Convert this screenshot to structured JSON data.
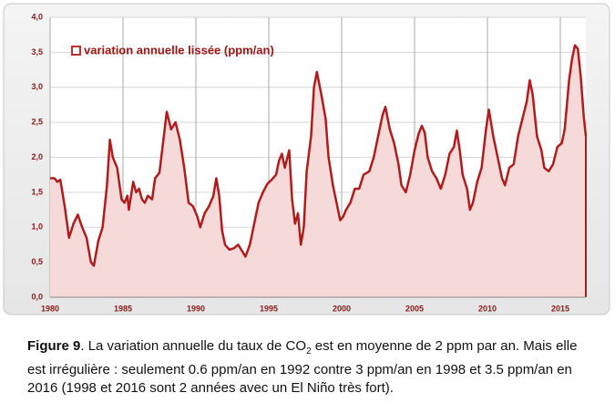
{
  "chart_data": {
    "type": "area",
    "legend": "variation annuelle lissée (ppm/an)",
    "color": "#b01c1c",
    "fill": "#f6dada",
    "xlim": [
      1980,
      2016.75
    ],
    "xticks": [
      1980,
      1985,
      1990,
      1995,
      2000,
      2005,
      2010,
      2015
    ],
    "ylim": [
      0,
      4
    ],
    "yticks": [
      {
        "value": 0,
        "label": "0,0"
      },
      {
        "value": 0.5,
        "label": "0,5"
      },
      {
        "value": 1,
        "label": "1,0"
      },
      {
        "value": 1.5,
        "label": "1,5"
      },
      {
        "value": 2,
        "label": "2,0"
      },
      {
        "value": 2.5,
        "label": "2,5"
      },
      {
        "value": 3,
        "label": "3,0"
      },
      {
        "value": 3.5,
        "label": "3,5"
      },
      {
        "value": 4,
        "label": "4,0"
      }
    ],
    "grid": true,
    "x": [
      1980.0,
      1980.3,
      1980.5,
      1980.7,
      1981.0,
      1981.3,
      1981.6,
      1981.9,
      1982.2,
      1982.5,
      1982.8,
      1983.0,
      1983.3,
      1983.6,
      1983.9,
      1984.1,
      1984.3,
      1984.6,
      1984.9,
      1985.1,
      1985.3,
      1985.4,
      1985.7,
      1985.9,
      1986.1,
      1986.3,
      1986.5,
      1986.7,
      1987.0,
      1987.2,
      1987.5,
      1987.8,
      1988.0,
      1988.3,
      1988.6,
      1988.9,
      1989.2,
      1989.5,
      1989.8,
      1990.1,
      1990.3,
      1990.6,
      1990.9,
      1991.2,
      1991.4,
      1991.6,
      1991.8,
      1992.0,
      1992.3,
      1992.6,
      1992.9,
      1993.2,
      1993.4,
      1993.7,
      1994.0,
      1994.3,
      1994.6,
      1994.9,
      1995.2,
      1995.5,
      1995.7,
      1995.9,
      1996.1,
      1996.4,
      1996.6,
      1996.8,
      1997.0,
      1997.2,
      1997.4,
      1997.6,
      1997.9,
      1998.1,
      1998.3,
      1998.6,
      1998.9,
      1999.1,
      1999.4,
      1999.7,
      1999.9,
      2000.1,
      2000.3,
      2000.6,
      2000.9,
      2001.2,
      2001.5,
      2001.9,
      2002.2,
      2002.5,
      2002.8,
      2003.0,
      2003.3,
      2003.6,
      2003.9,
      2004.1,
      2004.4,
      2004.7,
      2005.0,
      2005.3,
      2005.5,
      2005.7,
      2005.9,
      2006.2,
      2006.5,
      2006.8,
      2007.1,
      2007.4,
      2007.7,
      2007.9,
      2008.1,
      2008.3,
      2008.6,
      2008.8,
      2009.0,
      2009.3,
      2009.6,
      2009.9,
      2010.1,
      2010.4,
      2010.7,
      2011.0,
      2011.2,
      2011.5,
      2011.8,
      2012.1,
      2012.4,
      2012.7,
      2012.9,
      2013.1,
      2013.4,
      2013.7,
      2013.9,
      2014.2,
      2014.5,
      2014.8,
      2015.1,
      2015.3,
      2015.6,
      2015.8,
      2016.0,
      2016.2,
      2016.4,
      2016.6,
      2016.75
    ],
    "values": [
      1.7,
      1.7,
      1.65,
      1.68,
      1.3,
      0.85,
      1.05,
      1.18,
      1.0,
      0.85,
      0.5,
      0.45,
      0.8,
      1.0,
      1.6,
      2.25,
      2.0,
      1.85,
      1.4,
      1.35,
      1.45,
      1.25,
      1.65,
      1.5,
      1.55,
      1.4,
      1.35,
      1.45,
      1.4,
      1.7,
      1.78,
      2.3,
      2.65,
      2.4,
      2.5,
      2.25,
      1.85,
      1.35,
      1.3,
      1.15,
      1.0,
      1.2,
      1.3,
      1.45,
      1.7,
      1.45,
      0.95,
      0.75,
      0.68,
      0.7,
      0.75,
      0.65,
      0.58,
      0.75,
      1.05,
      1.35,
      1.5,
      1.62,
      1.68,
      1.75,
      1.95,
      2.05,
      1.85,
      2.1,
      1.4,
      1.05,
      1.2,
      0.75,
      1.0,
      1.8,
      2.3,
      3.0,
      3.22,
      2.9,
      2.55,
      2.0,
      1.6,
      1.3,
      1.1,
      1.15,
      1.25,
      1.35,
      1.55,
      1.55,
      1.75,
      1.8,
      2.0,
      2.3,
      2.6,
      2.72,
      2.4,
      2.2,
      1.9,
      1.6,
      1.5,
      1.75,
      2.1,
      2.35,
      2.45,
      2.35,
      2.0,
      1.8,
      1.7,
      1.55,
      1.75,
      2.05,
      2.15,
      2.38,
      2.1,
      1.75,
      1.55,
      1.25,
      1.35,
      1.65,
      1.85,
      2.4,
      2.68,
      2.3,
      2.0,
      1.7,
      1.6,
      1.85,
      1.9,
      2.3,
      2.55,
      2.8,
      3.1,
      2.9,
      2.3,
      2.1,
      1.85,
      1.8,
      1.9,
      2.15,
      2.2,
      2.4,
      3.1,
      3.4,
      3.6,
      3.55,
      3.15,
      2.6,
      2.3
    ]
  },
  "caption": {
    "label": "Figure 9",
    "parts": [
      ". La variation annuelle du taux de CO",
      "2",
      " est en moyenne de 2 ppm par an. Mais elle est irrégulière : seulement 0.6 ppm/an en 1992 contre 3 ppm/an en 1998 et 3.5 ppm/an en 2016 (1998 et 2016 sont 2 années avec un El Niño très fort)."
    ]
  }
}
